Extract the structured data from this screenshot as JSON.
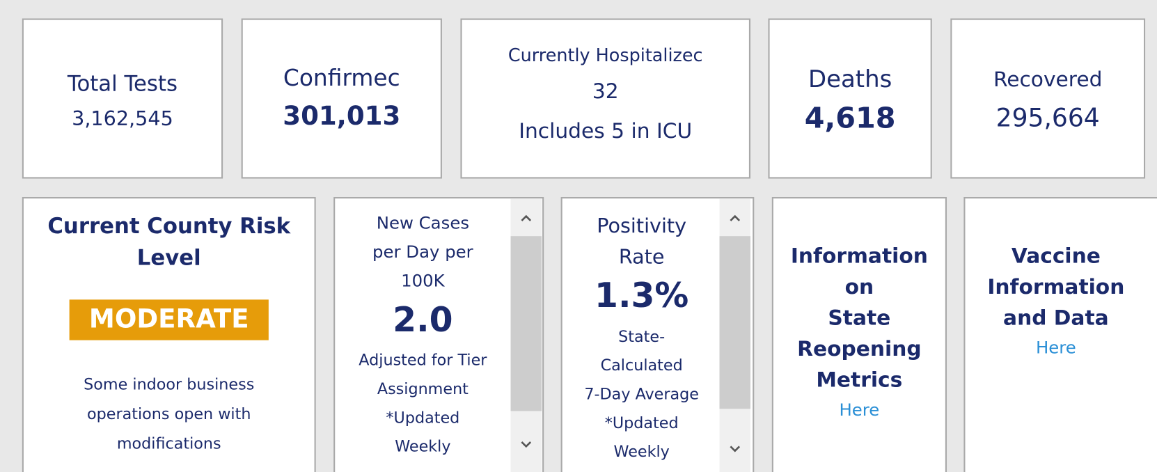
{
  "top_cards": [
    {
      "label": "Total Tests",
      "value": "3,162,545"
    },
    {
      "label": "Confirmec",
      "value": "301,013"
    },
    {
      "label": "Currently Hospitalizec",
      "value": "32",
      "note": "Includes 5 in ICU"
    },
    {
      "label": "Deaths",
      "value": "4,618"
    },
    {
      "label": "Recovered",
      "value": "295,664"
    }
  ],
  "risk": {
    "title": [
      "Current County Risk",
      "Level"
    ],
    "level": "MODERATE",
    "description": [
      "Some indoor business",
      "operations open with",
      "modifications"
    ]
  },
  "new_cases": {
    "title": [
      "New Cases",
      "per Day per",
      "100K"
    ],
    "value": "2.0",
    "note": [
      "Adjusted for Tier",
      "Assignment",
      "*Updated",
      "Weekly"
    ]
  },
  "positivity": {
    "title": [
      "Positivity",
      "Rate"
    ],
    "value": "1.3%",
    "note": [
      "State-",
      "Calculated",
      "7-Day Average",
      "*Updated",
      "Weekly"
    ]
  },
  "reopening": {
    "title": [
      "Information",
      "on",
      "State",
      "Reopening",
      "Metrics"
    ],
    "link": "Here"
  },
  "vaccine": {
    "title": [
      "Vaccine",
      "Information",
      "and Data"
    ],
    "link": "Here"
  }
}
